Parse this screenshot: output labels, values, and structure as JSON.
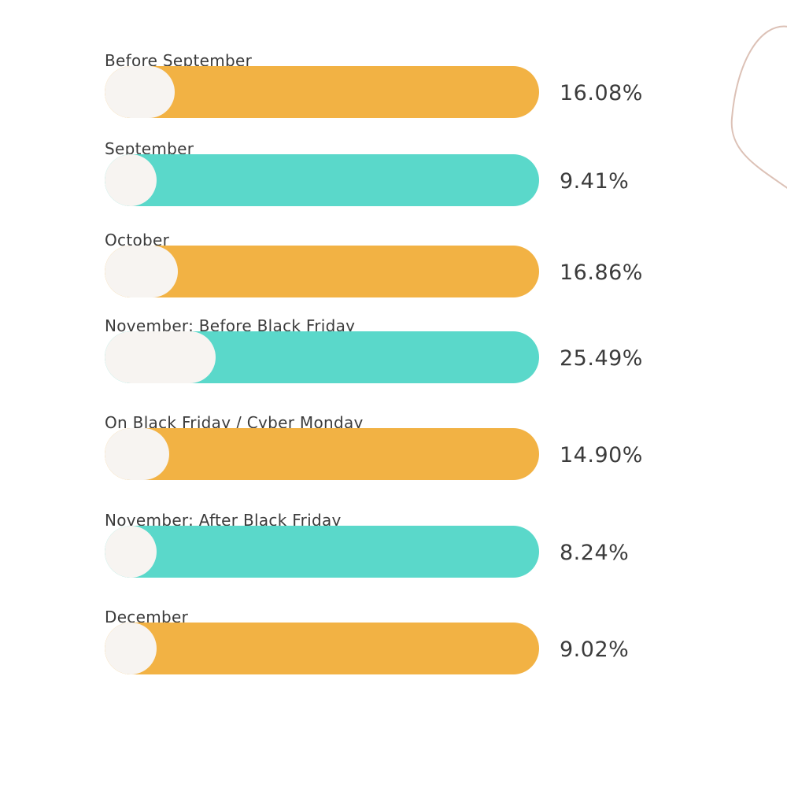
{
  "chart_data": {
    "type": "bar",
    "orientation": "horizontal",
    "title": "",
    "xlabel": "",
    "ylabel": "",
    "xlim": [
      0,
      100
    ],
    "unit": "%",
    "categories": [
      "Before September",
      "September",
      "October",
      "November: Before Black Friday",
      "On Black Friday / Cyber Monday",
      "November: After Black Friday",
      "December"
    ],
    "values": [
      16.08,
      9.41,
      16.86,
      25.49,
      14.9,
      8.24,
      9.02
    ],
    "value_labels": [
      "16.08%",
      "9.41%",
      "16.86%",
      "25.49%",
      "14.90%",
      "8.24%",
      "9.02%"
    ],
    "bar_colors": [
      "#f2b244",
      "#5ad8ca",
      "#f2b244",
      "#5ad8ca",
      "#f2b244",
      "#5ad8ca",
      "#f2b244"
    ],
    "fill_color": "#f7f4f1",
    "grid": false,
    "legend": "none"
  }
}
